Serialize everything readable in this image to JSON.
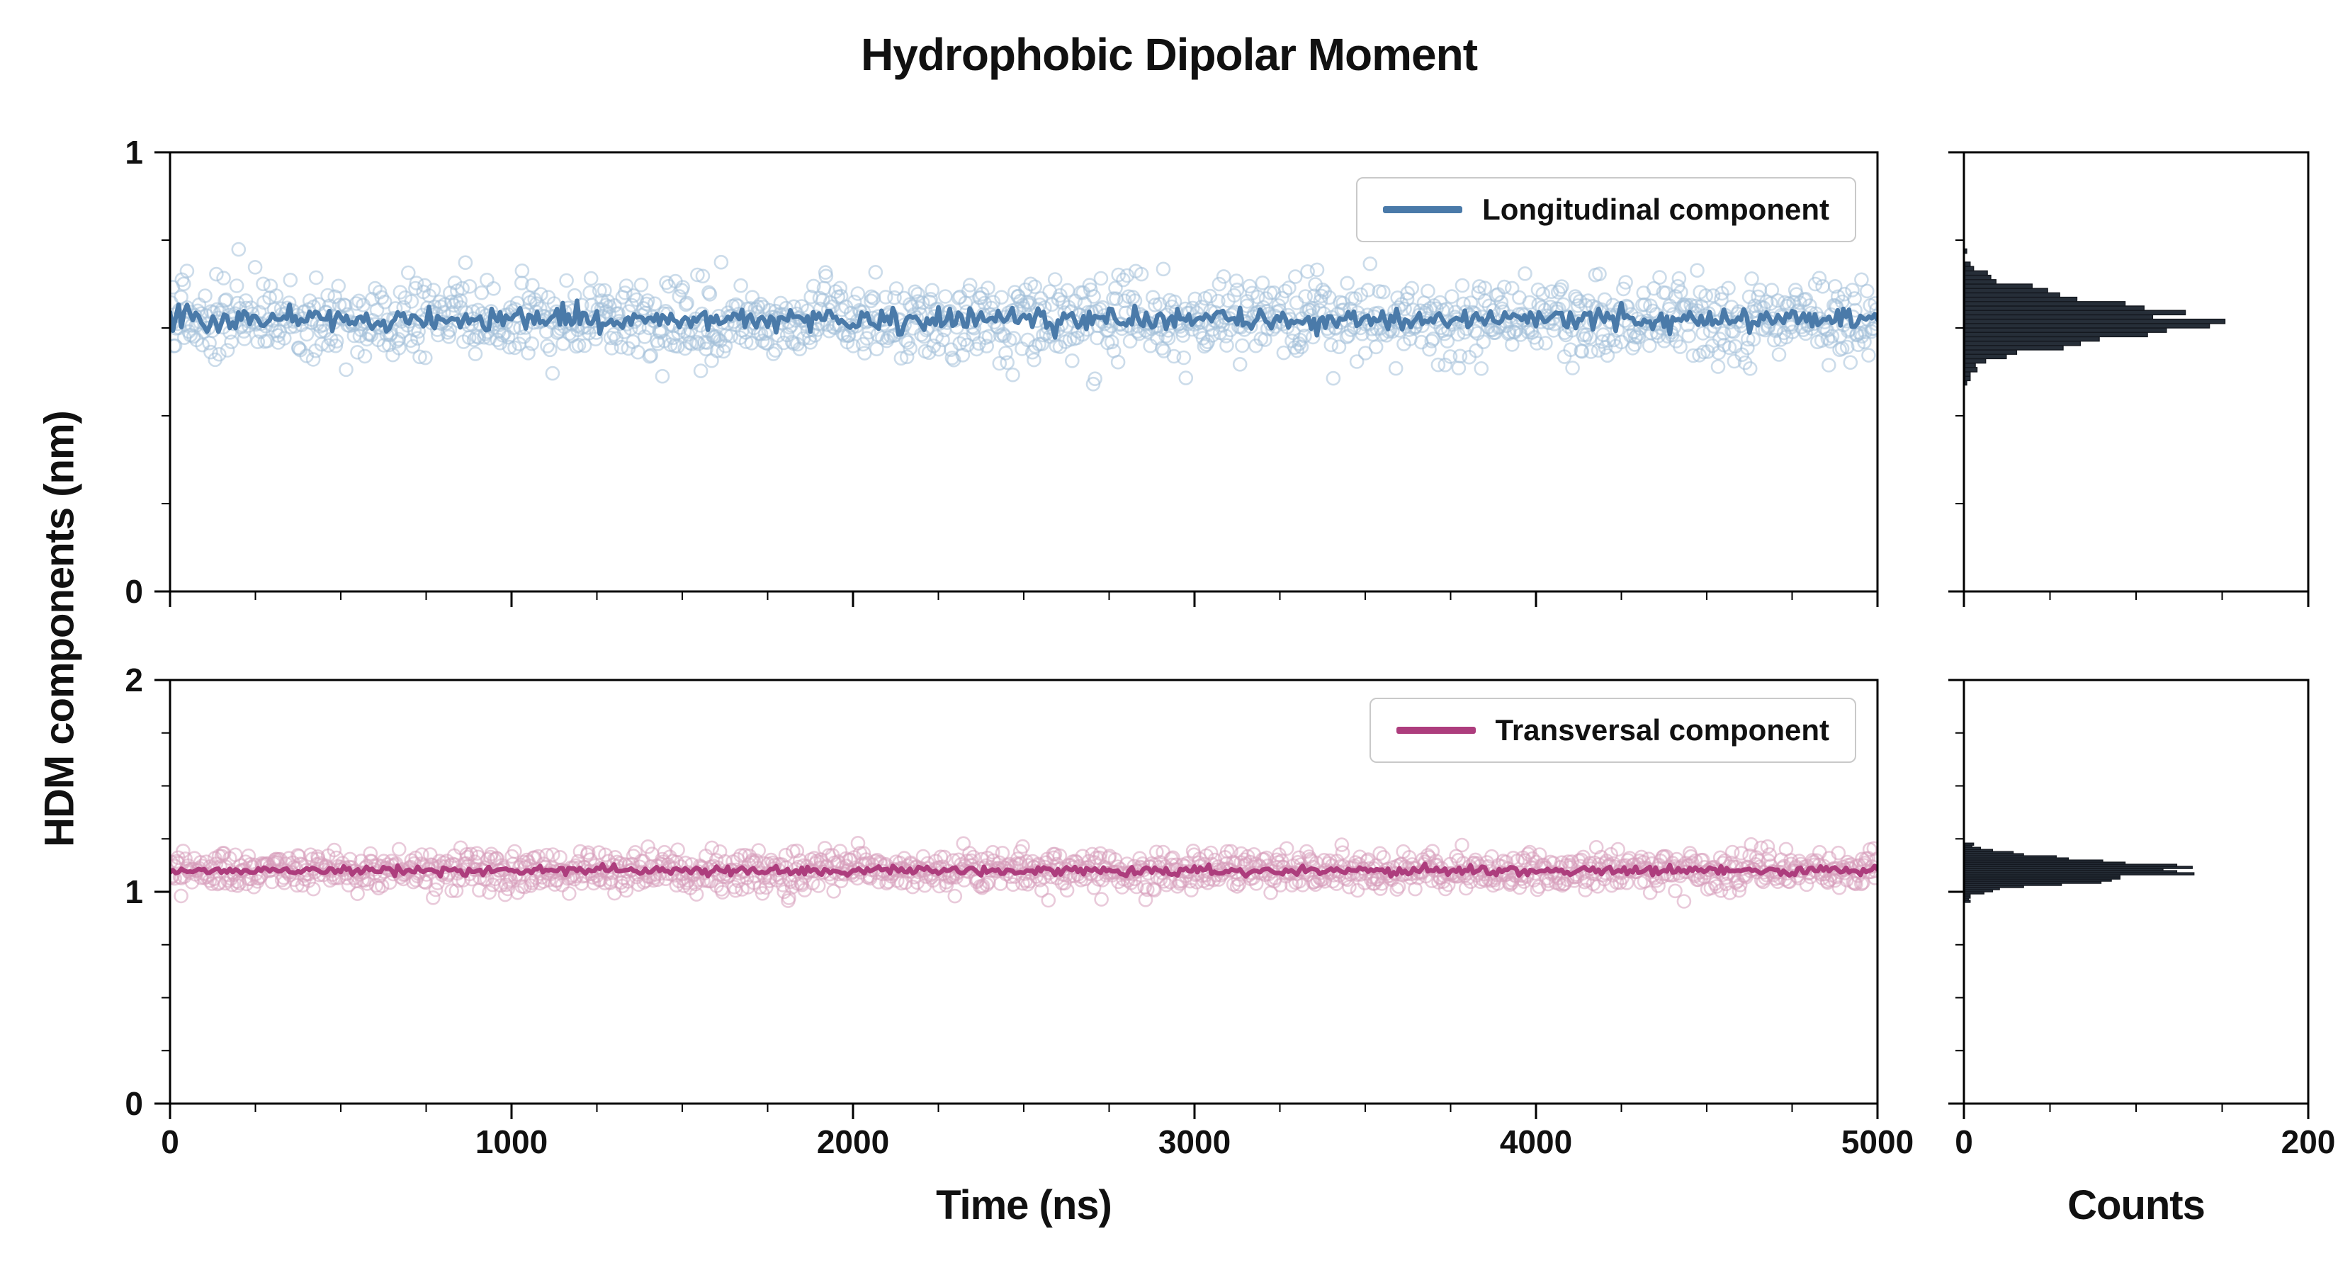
{
  "title": "Hydrophobic Dipolar Moment",
  "labels": {
    "y_axis": "HDM components (nm)",
    "x_main": "Time (ns)",
    "x_hist": "Counts"
  },
  "colors": {
    "background": "#ffffff",
    "axis": "#000000",
    "text": "#111111",
    "long_scatter": "#a3bfd9",
    "long_line": "#4a7aa9",
    "trans_scatter": "#d79fbb",
    "trans_line": "#ad3d7d",
    "hist_fill": "#262e38",
    "hist_edge": "#14181f",
    "legend_border": "#c9c9c9"
  },
  "chart_data": [
    {
      "type": "scatter",
      "panel": "longitudinal",
      "legend": "Longitudinal component",
      "x_range": [
        0,
        5000
      ],
      "y_range": [
        0,
        1
      ],
      "x_ticks": [
        0,
        1000,
        2000,
        3000,
        4000,
        5000
      ],
      "x_minor_step": 250,
      "y_ticks": [
        0,
        1
      ],
      "y_minor_step": 0.2,
      "n_points": 1500,
      "mean": 0.62,
      "std": 0.045,
      "line_std": 0.013,
      "seed": 20240
    },
    {
      "type": "scatter",
      "panel": "transversal",
      "legend": "Transversal component",
      "x_range": [
        0,
        5000
      ],
      "y_range": [
        0,
        2
      ],
      "x_ticks": [
        0,
        1000,
        2000,
        3000,
        4000,
        5000
      ],
      "x_minor_step": 250,
      "y_ticks": [
        0,
        1,
        2
      ],
      "y_minor_step": 0.25,
      "n_points": 1500,
      "mean": 1.1,
      "std": 0.045,
      "line_std": 0.011,
      "seed": 777
    },
    {
      "type": "histogram",
      "panel": "longitudinal-hist",
      "orientation": "horizontal",
      "x_range": [
        0,
        200
      ],
      "x_ticks": [
        0,
        200
      ],
      "x_minor_step": 50,
      "bin_width": 0.01,
      "peak_count": 133,
      "peak_at": 0.62
    },
    {
      "type": "histogram",
      "panel": "transversal-hist",
      "orientation": "horizontal",
      "x_range": [
        0,
        200
      ],
      "x_ticks": [
        0,
        200
      ],
      "x_minor_step": 50,
      "bin_width": 0.01,
      "peak_count": 135,
      "peak_at": 1.1
    }
  ]
}
